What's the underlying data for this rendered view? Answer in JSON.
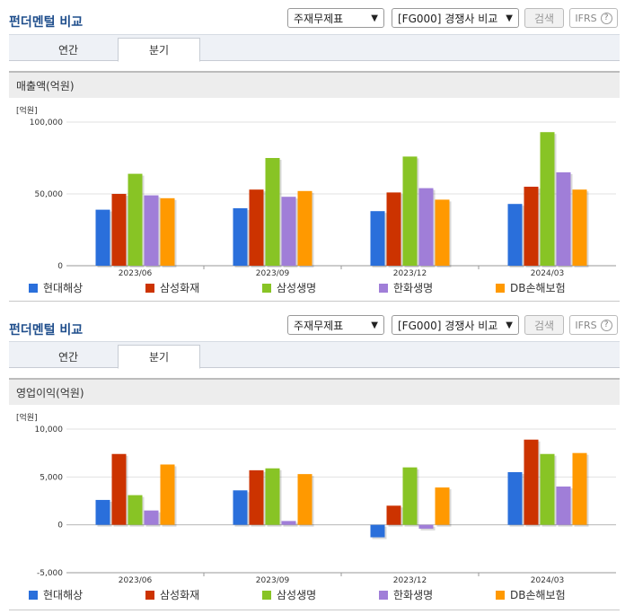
{
  "panels": [
    {
      "title": "펀더멘털 비교",
      "select1": "주재무제표",
      "select2": "[FG000] 경쟁사 비교",
      "search_label": "검색",
      "ifrs_label": "IFRS",
      "help_glyph": "?",
      "tabs": [
        {
          "label": "연간"
        },
        {
          "label": "분기"
        }
      ],
      "active_tab": 1,
      "section_title": "매출액(억원)",
      "chart_data": {
        "type": "bar",
        "unit_label": "[억원]",
        "categories": [
          "2023/06",
          "2023/09",
          "2023/12",
          "2024/03"
        ],
        "ylim": [
          0,
          100000
        ],
        "yticks": [
          0,
          50000,
          100000
        ],
        "ytick_labels": [
          "0",
          "50,000",
          "100,000"
        ],
        "grid": true,
        "legend_position": "bottom",
        "series": [
          {
            "name": "현대해상",
            "color": "#2a6fdb",
            "values": [
              39000,
              40000,
              38000,
              43000
            ]
          },
          {
            "name": "삼성화재",
            "color": "#cc3300",
            "values": [
              50000,
              53000,
              51000,
              55000
            ]
          },
          {
            "name": "삼성생명",
            "color": "#88c425",
            "values": [
              64000,
              75000,
              76000,
              93000
            ]
          },
          {
            "name": "한화생명",
            "color": "#a07ed8",
            "values": [
              49000,
              48000,
              54000,
              65000
            ]
          },
          {
            "name": "DB손해보험",
            "color": "#ff9900",
            "values": [
              47000,
              52000,
              46000,
              53000
            ]
          }
        ]
      }
    },
    {
      "title": "펀더멘털 비교",
      "select1": "주재무제표",
      "select2": "[FG000] 경쟁사 비교",
      "search_label": "검색",
      "ifrs_label": "IFRS",
      "help_glyph": "?",
      "tabs": [
        {
          "label": "연간"
        },
        {
          "label": "분기"
        }
      ],
      "active_tab": 1,
      "section_title": "영업이익(억원)",
      "chart_data": {
        "type": "bar",
        "unit_label": "[억원]",
        "categories": [
          "2023/06",
          "2023/09",
          "2023/12",
          "2024/03"
        ],
        "ylim": [
          -5000,
          10000
        ],
        "yticks": [
          -5000,
          0,
          5000,
          10000
        ],
        "ytick_labels": [
          "-5,000",
          "0",
          "5,000",
          "10,000"
        ],
        "grid": true,
        "legend_position": "bottom",
        "series": [
          {
            "name": "현대해상",
            "color": "#2a6fdb",
            "values": [
              2600,
              3600,
              -1300,
              5500
            ]
          },
          {
            "name": "삼성화재",
            "color": "#cc3300",
            "values": [
              7400,
              5700,
              2000,
              8900
            ]
          },
          {
            "name": "삼성생명",
            "color": "#88c425",
            "values": [
              3100,
              5900,
              6000,
              7400
            ]
          },
          {
            "name": "한화생명",
            "color": "#a07ed8",
            "values": [
              1500,
              400,
              -400,
              4000
            ]
          },
          {
            "name": "DB손해보험",
            "color": "#ff9900",
            "values": [
              6300,
              5300,
              3900,
              7500
            ]
          }
        ]
      }
    }
  ]
}
